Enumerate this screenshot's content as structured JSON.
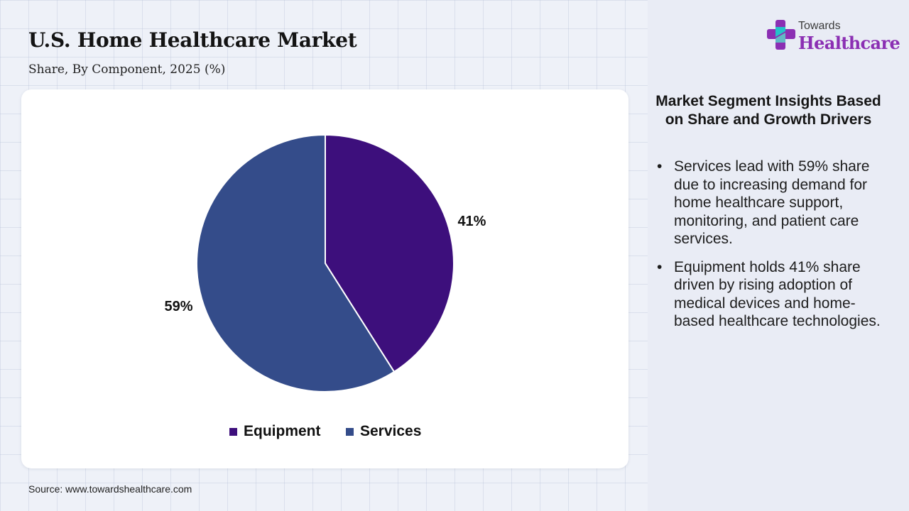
{
  "header": {
    "title": "U.S. Home Healthcare Market",
    "subtitle": "Share, By Component, 2025 (%)"
  },
  "chart_data": {
    "type": "pie",
    "title": "U.S. Home Healthcare Market",
    "subtitle": "Share, By Component, 2025 (%)",
    "categories": [
      "Equipment",
      "Services"
    ],
    "values": [
      41,
      59
    ],
    "labels": [
      "41%",
      "59%"
    ],
    "colors": [
      "#3d0f7c",
      "#344c8a"
    ],
    "legend_position": "bottom-center",
    "start_angle": "12 o'clock",
    "direction": "clockwise"
  },
  "logo": {
    "small_text": "Towards",
    "big_text": "Healthcare"
  },
  "insights": {
    "heading": "Market Segment Insights Based on Share and Growth Drivers",
    "items": [
      "Services lead with 59% share due to increasing demand for home healthcare support, monitoring, and patient care services.",
      "Equipment holds 41% share driven by rising adoption of medical devices and home-based healthcare technologies."
    ]
  },
  "source": "Source: www.towardshealthcare.com"
}
